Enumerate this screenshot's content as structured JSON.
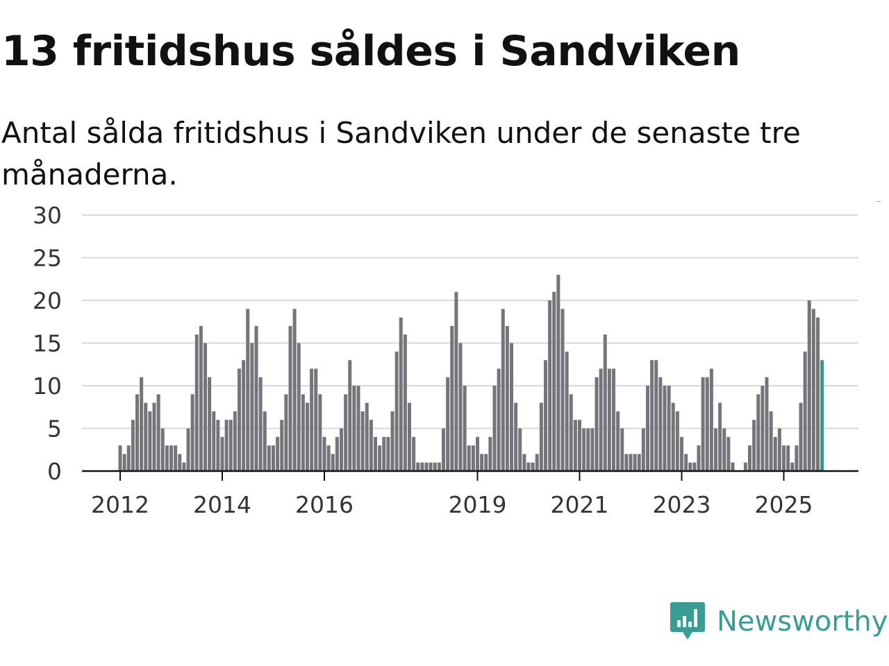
{
  "header": {
    "title": "13 fritidshus såldes i Sandviken",
    "subtitle": "Antal sålda fritidshus i Sandviken under de senaste tre månaderna."
  },
  "brand": {
    "name": "Newsworthy",
    "color": "#3a9d95",
    "icon": "newsworthy-logo-icon"
  },
  "chart_data": {
    "type": "bar",
    "title": "13 fritidshus såldes i Sandviken",
    "subtitle": "Antal sålda fritidshus i Sandviken under de senaste tre månaderna.",
    "xlabel": "",
    "ylabel": "",
    "ylim": [
      0,
      30
    ],
    "yticks": [
      0,
      5,
      10,
      15,
      20,
      25,
      30
    ],
    "grid": true,
    "x_tick_labels": [
      {
        "label": "2012",
        "index": 0
      },
      {
        "label": "2014",
        "index": 24
      },
      {
        "label": "2016",
        "index": 48
      },
      {
        "label": "2019",
        "index": 84
      },
      {
        "label": "2021",
        "index": 108
      },
      {
        "label": "2023",
        "index": 132
      },
      {
        "label": "2025",
        "index": 156
      }
    ],
    "series": [
      {
        "name": "Antal sålda fritidshus",
        "start": "2012-01",
        "frequency": "monthly",
        "color": "#75747a",
        "highlight_color": "#2a9d93",
        "highlight_last": true,
        "values": [
          3,
          2,
          3,
          6,
          9,
          11,
          8,
          7,
          8,
          9,
          5,
          3,
          3,
          3,
          2,
          1,
          5,
          9,
          16,
          17,
          15,
          11,
          7,
          6,
          4,
          6,
          6,
          7,
          12,
          13,
          19,
          15,
          17,
          11,
          7,
          3,
          3,
          4,
          6,
          9,
          17,
          19,
          15,
          9,
          8,
          12,
          12,
          9,
          4,
          3,
          2,
          4,
          5,
          9,
          13,
          10,
          10,
          7,
          8,
          6,
          4,
          3,
          4,
          4,
          7,
          14,
          18,
          16,
          8,
          4,
          1,
          1,
          1,
          1,
          1,
          1,
          5,
          11,
          17,
          21,
          15,
          10,
          3,
          3,
          4,
          2,
          2,
          4,
          10,
          12,
          19,
          17,
          15,
          8,
          5,
          2,
          1,
          1,
          2,
          8,
          13,
          20,
          21,
          23,
          19,
          14,
          9,
          6,
          6,
          5,
          5,
          5,
          11,
          12,
          16,
          12,
          12,
          7,
          5,
          2,
          2,
          2,
          2,
          5,
          10,
          13,
          13,
          11,
          10,
          10,
          8,
          7,
          4,
          2,
          1,
          1,
          3,
          11,
          11,
          12,
          5,
          8,
          5,
          4,
          1,
          0,
          0,
          1,
          3,
          6,
          9,
          10,
          11,
          7,
          4,
          5,
          3,
          3,
          1,
          3,
          8,
          14,
          20,
          19,
          18,
          13
        ]
      }
    ],
    "annotations": [
      {
        "text": "13",
        "index": 177
      }
    ]
  }
}
